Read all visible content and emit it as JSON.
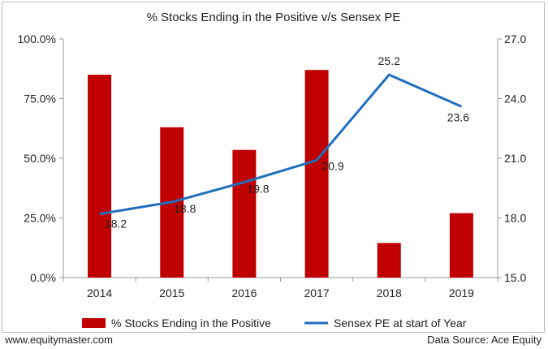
{
  "chart_data": {
    "type": "bar+line",
    "title": "% Stocks Ending in the Positive v/s Sensex PE",
    "categories": [
      "2014",
      "2015",
      "2016",
      "2017",
      "2018",
      "2019"
    ],
    "series": [
      {
        "name": "% Stocks Ending in the Positive",
        "type": "bar",
        "axis": "left",
        "unit": "percent",
        "values": [
          85.0,
          63.0,
          53.5,
          87.0,
          14.5,
          27.0
        ],
        "color": "#c00000"
      },
      {
        "name": "Sensex PE at start of Year",
        "type": "line",
        "axis": "right",
        "values": [
          18.2,
          18.8,
          19.8,
          20.9,
          25.2,
          23.6
        ],
        "data_labels": [
          "18.2",
          "18.8",
          "19.8",
          "20.9",
          "25.2",
          "23.6"
        ],
        "color": "#1f6fbf"
      }
    ],
    "y_left": {
      "ylim": [
        0,
        100
      ],
      "ticks": [
        "0.0%",
        "25.0%",
        "50.0%",
        "75.0%",
        "100.0%"
      ]
    },
    "y_right": {
      "ylim": [
        15,
        27
      ],
      "ticks": [
        "15.0",
        "18.0",
        "21.0",
        "24.0",
        "27.0"
      ]
    },
    "legend_position": "bottom",
    "grid": false
  },
  "footer": {
    "left": "www.equitymaster.com",
    "right": "Data Source: Ace Equity"
  }
}
